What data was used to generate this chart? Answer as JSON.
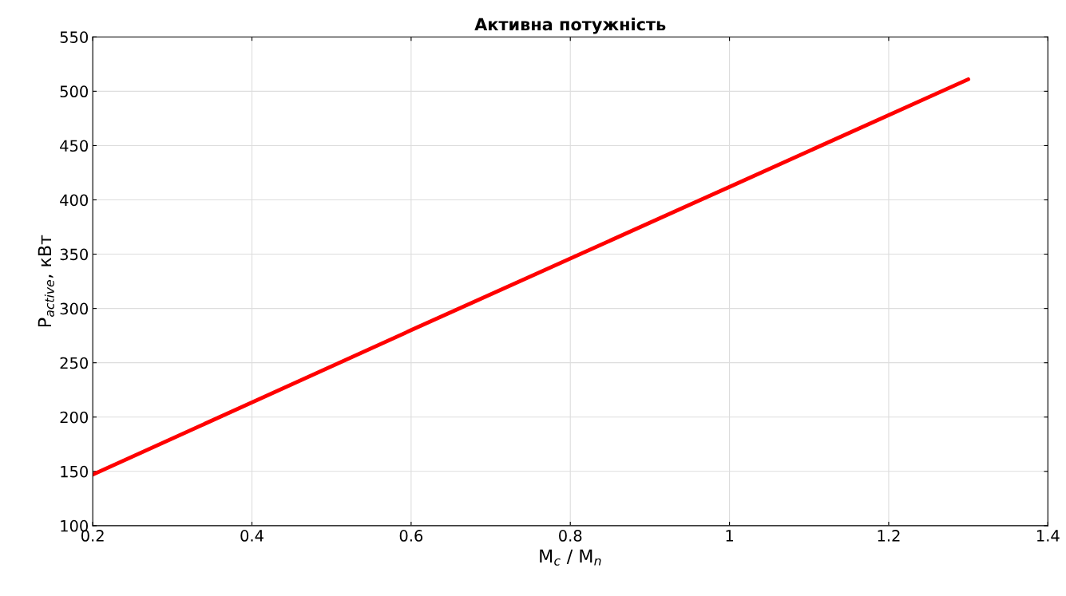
{
  "chart_data": {
    "type": "line",
    "title": "Активна потужність",
    "xlabel": "M$_{c}$ / M$_{n}$",
    "ylabel": "P$_{active}$, кВт",
    "x": [
      0.2,
      0.6,
      1.0,
      1.3
    ],
    "series": [
      {
        "color": "#ff0000",
        "values": [
          147,
          280,
          412,
          511
        ]
      }
    ],
    "xlim": [
      0.2,
      1.4
    ],
    "xticks": [
      0.2,
      0.4,
      0.6,
      0.8,
      1,
      1.2,
      1.4
    ],
    "ylim": [
      100,
      550
    ],
    "yticks": [
      100,
      150,
      200,
      250,
      300,
      350,
      400,
      450,
      500,
      550
    ],
    "grid": true,
    "line_style": "solid",
    "marker": "none"
  }
}
